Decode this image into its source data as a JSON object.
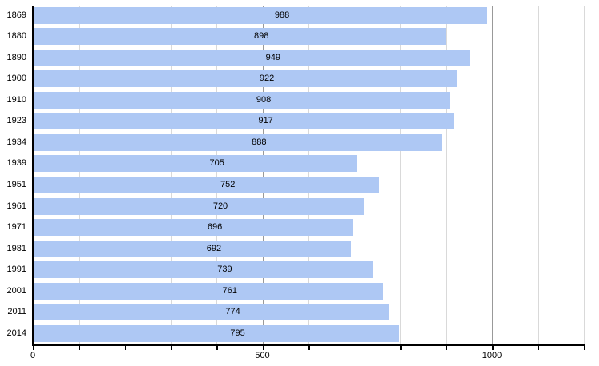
{
  "chart_data": {
    "type": "bar",
    "orientation": "horizontal",
    "title": "",
    "xlabel": "",
    "ylabel": "",
    "legend": "none",
    "grid": "vertical",
    "categories": [
      "1869",
      "1880",
      "1890",
      "1900",
      "1910",
      "1923",
      "1934",
      "1939",
      "1951",
      "1961",
      "1971",
      "1981",
      "1991",
      "2001",
      "2011",
      "2014"
    ],
    "values": [
      988,
      898,
      949,
      922,
      908,
      917,
      888,
      705,
      752,
      720,
      696,
      692,
      739,
      761,
      774,
      795
    ],
    "value_labels": [
      "988",
      "898",
      "949",
      "922",
      "908",
      "917",
      "888",
      "705",
      "752",
      "720",
      "696",
      "692",
      "739",
      "761",
      "774",
      "795"
    ],
    "xlim": [
      0,
      1200
    ],
    "x_minor_tick_interval": 100,
    "x_major_ticks": [
      0,
      500,
      1000
    ],
    "x_tick_labels": [
      "0",
      "500",
      "1000"
    ],
    "colors": {
      "bar": "#aec8f4",
      "grid_minor": "#d9d9d9",
      "grid_major": "#999999",
      "axis": "#000000",
      "text": "#000000",
      "background": "#ffffff"
    }
  }
}
